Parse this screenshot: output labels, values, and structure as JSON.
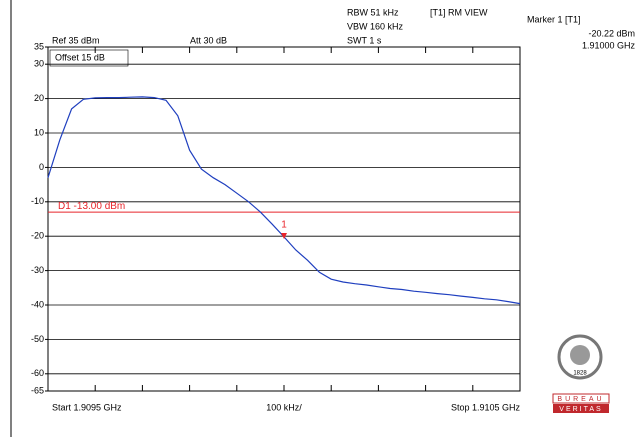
{
  "chart_data": {
    "type": "line",
    "header": {
      "ref": "Ref 35 dBm",
      "att": "Att 30 dB",
      "offset": "Offset 15 dB",
      "rbw": "RBW 51 kHz",
      "vbw": "VBW 160 kHz",
      "swt": "SWT 1 s",
      "view": "[T1] RM VIEW"
    },
    "marker": {
      "title": "Marker 1 [T1]",
      "x": 1.91,
      "y": -20.22,
      "x_label": "1.91000 GHz",
      "y_label": "-20.22 dBm",
      "label": "1"
    },
    "display_line": {
      "value": -13,
      "label": "D1 -13.00 dBm",
      "color": "#e8242a"
    },
    "footer": {
      "start": "Start 1.9095 GHz",
      "span": "100 kHz/",
      "stop": "Stop 1.9105 GHz"
    },
    "logo": {
      "top": "BUREAU",
      "bottom": "VERITAS",
      "year": "1828"
    },
    "xlim": [
      1.9095,
      1.9105
    ],
    "xticks": [
      1.9095,
      1.9096,
      1.9097,
      1.9098,
      1.9099,
      1.91,
      1.9101,
      1.9102,
      1.9103,
      1.9104,
      1.9105
    ],
    "ylim": [
      -65,
      35
    ],
    "yticks": [
      35,
      30,
      20,
      10,
      0,
      -10,
      -20,
      -30,
      -40,
      -50,
      -60,
      -65
    ],
    "grid": true,
    "series": [
      {
        "color": "#1f3fbf",
        "x": [
          1.9095,
          1.909525,
          1.90955,
          1.909575,
          1.9096,
          1.909625,
          1.90965,
          1.909675,
          1.9097,
          1.909725,
          1.90975,
          1.909775,
          1.9098,
          1.909825,
          1.90985,
          1.909875,
          1.9099,
          1.909925,
          1.90995,
          1.909975,
          1.91,
          1.910025,
          1.91005,
          1.910075,
          1.9101,
          1.910125,
          1.91015,
          1.910175,
          1.9102,
          1.910225,
          1.91025,
          1.910275,
          1.9103,
          1.910325,
          1.91035,
          1.910375,
          1.9104,
          1.910425,
          1.91045,
          1.910475,
          1.9105
        ],
        "values": [
          -3,
          8,
          17,
          19.8,
          20.2,
          20.3,
          20.3,
          20.4,
          20.5,
          20.3,
          19.5,
          15,
          5,
          -0.5,
          -3,
          -5,
          -7.5,
          -10,
          -13,
          -16.5,
          -20.2,
          -24,
          -27,
          -30.5,
          -32.5,
          -33.3,
          -33.8,
          -34.2,
          -34.7,
          -35.2,
          -35.5,
          -36,
          -36.3,
          -36.7,
          -37,
          -37.4,
          -37.8,
          -38.2,
          -38.5,
          -39,
          -39.6
        ]
      }
    ]
  }
}
